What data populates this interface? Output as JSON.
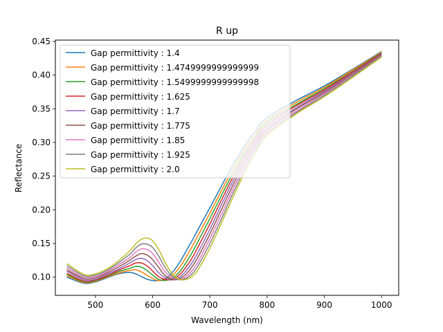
{
  "chart_data": {
    "type": "line",
    "title": "R up",
    "xlabel": "Wavelength (nm)",
    "ylabel": "Reflectance",
    "xlim": [
      430,
      1030
    ],
    "ylim": [
      0.073,
      0.452
    ],
    "xticks": [
      500,
      600,
      700,
      800,
      900,
      1000
    ],
    "xtick_labels": [
      "500",
      "600",
      "700",
      "800",
      "900",
      "1000"
    ],
    "yticks": [
      0.1,
      0.15,
      0.2,
      0.25,
      0.3,
      0.35,
      0.4,
      0.45
    ],
    "ytick_labels": [
      "0.10",
      "0.15",
      "0.20",
      "0.25",
      "0.30",
      "0.35",
      "0.40",
      "0.45"
    ],
    "grid": false,
    "legend_position": "upper-left",
    "x": [
      450,
      480,
      500,
      520,
      540,
      560,
      570,
      580,
      590,
      600,
      610,
      620,
      630,
      640,
      650,
      660,
      670,
      680,
      700,
      720,
      740,
      760,
      780,
      800,
      850,
      900,
      950,
      1000
    ],
    "series": [
      {
        "name": "Gap permittivity : 1.4",
        "color": "#1f77b4",
        "values": [
          0.1,
          0.091,
          0.093,
          0.099,
          0.105,
          0.107,
          0.105,
          0.101,
          0.097,
          0.095,
          0.095,
          0.097,
          0.103,
          0.113,
          0.126,
          0.141,
          0.156,
          0.172,
          0.203,
          0.235,
          0.266,
          0.294,
          0.318,
          0.337,
          0.362,
          0.384,
          0.409,
          0.435
        ]
      },
      {
        "name": "Gap permittivity : 1.4749999999999999",
        "color": "#ff7f0e",
        "values": [
          0.102,
          0.092,
          0.094,
          0.1,
          0.106,
          0.11,
          0.111,
          0.108,
          0.103,
          0.098,
          0.095,
          0.096,
          0.099,
          0.107,
          0.118,
          0.132,
          0.147,
          0.163,
          0.195,
          0.228,
          0.26,
          0.289,
          0.313,
          0.333,
          0.359,
          0.382,
          0.408,
          0.434
        ]
      },
      {
        "name": "Gap permittivity : 1.5499999999999998",
        "color": "#2ca02c",
        "values": [
          0.104,
          0.093,
          0.095,
          0.101,
          0.108,
          0.113,
          0.116,
          0.115,
          0.11,
          0.103,
          0.097,
          0.095,
          0.097,
          0.102,
          0.111,
          0.124,
          0.138,
          0.154,
          0.187,
          0.221,
          0.254,
          0.284,
          0.309,
          0.33,
          0.356,
          0.38,
          0.406,
          0.433
        ]
      },
      {
        "name": "Gap permittivity : 1.625",
        "color": "#d62728",
        "values": [
          0.106,
          0.094,
          0.096,
          0.102,
          0.11,
          0.117,
          0.121,
          0.121,
          0.117,
          0.109,
          0.101,
          0.097,
          0.096,
          0.099,
          0.106,
          0.117,
          0.13,
          0.146,
          0.179,
          0.214,
          0.248,
          0.279,
          0.305,
          0.326,
          0.354,
          0.378,
          0.405,
          0.432
        ]
      },
      {
        "name": "Gap permittivity : 1.7",
        "color": "#9467bd",
        "values": [
          0.109,
          0.096,
          0.097,
          0.104,
          0.112,
          0.121,
          0.126,
          0.128,
          0.125,
          0.117,
          0.107,
          0.1,
          0.096,
          0.097,
          0.102,
          0.111,
          0.123,
          0.138,
          0.171,
          0.207,
          0.242,
          0.274,
          0.301,
          0.322,
          0.351,
          0.376,
          0.403,
          0.431
        ]
      },
      {
        "name": "Gap permittivity : 1.775",
        "color": "#8c564b",
        "values": [
          0.111,
          0.098,
          0.099,
          0.106,
          0.115,
          0.125,
          0.131,
          0.135,
          0.133,
          0.126,
          0.115,
          0.104,
          0.098,
          0.096,
          0.099,
          0.106,
          0.117,
          0.131,
          0.164,
          0.2,
          0.236,
          0.269,
          0.297,
          0.319,
          0.349,
          0.374,
          0.402,
          0.43
        ]
      },
      {
        "name": "Gap permittivity : 1.85",
        "color": "#e377c2",
        "values": [
          0.114,
          0.1,
          0.101,
          0.108,
          0.118,
          0.129,
          0.137,
          0.142,
          0.141,
          0.135,
          0.123,
          0.11,
          0.101,
          0.097,
          0.097,
          0.102,
          0.111,
          0.124,
          0.157,
          0.193,
          0.23,
          0.264,
          0.293,
          0.316,
          0.346,
          0.372,
          0.4,
          0.429
        ]
      },
      {
        "name": "Gap permittivity : 1.925",
        "color": "#7f7f7f",
        "values": [
          0.117,
          0.102,
          0.103,
          0.11,
          0.121,
          0.134,
          0.143,
          0.149,
          0.149,
          0.144,
          0.132,
          0.117,
          0.105,
          0.098,
          0.096,
          0.099,
          0.106,
          0.118,
          0.15,
          0.186,
          0.224,
          0.259,
          0.289,
          0.313,
          0.344,
          0.37,
          0.399,
          0.428
        ]
      },
      {
        "name": "Gap permittivity : 2.0",
        "color": "#bcbd22",
        "values": [
          0.12,
          0.104,
          0.105,
          0.112,
          0.124,
          0.139,
          0.149,
          0.156,
          0.158,
          0.154,
          0.142,
          0.125,
          0.11,
          0.1,
          0.096,
          0.097,
          0.102,
          0.112,
          0.143,
          0.18,
          0.218,
          0.254,
          0.285,
          0.31,
          0.342,
          0.368,
          0.397,
          0.427
        ]
      }
    ]
  }
}
